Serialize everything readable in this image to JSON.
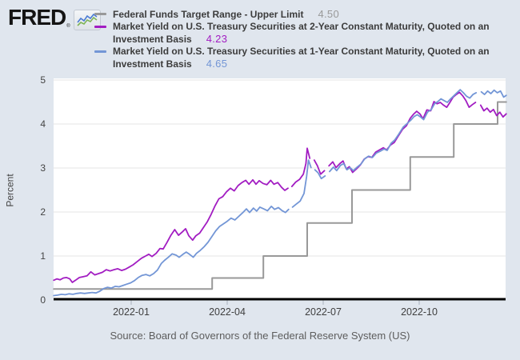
{
  "logo": {
    "text": "FRED",
    "registered": "®"
  },
  "legend": {
    "items": [
      {
        "label": "Federal Funds Target Range - Upper Limit",
        "label_lines": [
          "Federal Funds Target Range - Upper Limit"
        ],
        "value": "4.50",
        "color": "#999999"
      },
      {
        "label": "Market Yield on U.S. Treasury Securities at 2-Year Constant Maturity, Quoted on an Investment Basis",
        "label_lines": [
          "Market Yield on U.S. Treasury Securities at 2-Year Constant Maturity, Quoted on an",
          "Investment Basis"
        ],
        "value": "4.23",
        "color": "#a21dc2"
      },
      {
        "label": "Market Yield on U.S. Treasury Securities at 1-Year Constant Maturity, Quoted on an Investment Basis",
        "label_lines": [
          "Market Yield on U.S. Treasury Securities at 1-Year Constant Maturity, Quoted on an",
          "Investment Basis"
        ],
        "value": "4.65",
        "color": "#7396d6"
      }
    ]
  },
  "source": "Source: Board of Governors of the Federal Reserve System (US)",
  "chart_data": {
    "type": "line",
    "title": "",
    "xlabel": "",
    "ylabel": "Percent",
    "ylim": [
      0,
      5
    ],
    "yticks": [
      0,
      1,
      2,
      3,
      4,
      5
    ],
    "x_unit": "months since 2022-01-01",
    "xlim": [
      -2.42,
      11.72
    ],
    "xticks": [
      {
        "m": 0,
        "label": "2022-01"
      },
      {
        "m": 3,
        "label": "2022-04"
      },
      {
        "m": 6,
        "label": "2022-07"
      },
      {
        "m": 9,
        "label": "2022-10"
      }
    ],
    "grid": true,
    "legend_position": "top",
    "plot_bg": "#ffffff",
    "page_bg": "#e0e6ee",
    "grid_color": "#e6e6e6",
    "axis_color": "#000000",
    "tick_label_color": "#444444",
    "series": [
      {
        "name": "Federal Funds Target Range - Upper Limit",
        "key": "ffr-upper",
        "color": "#999999",
        "width": 2,
        "latest": 4.5,
        "step": true,
        "points": [
          [
            -2.42,
            0.25
          ],
          [
            2.53,
            0.25
          ],
          [
            2.53,
            0.5
          ],
          [
            4.13,
            0.5
          ],
          [
            4.13,
            1.0
          ],
          [
            5.5,
            1.0
          ],
          [
            5.5,
            1.75
          ],
          [
            6.9,
            1.75
          ],
          [
            6.9,
            2.5
          ],
          [
            8.72,
            2.5
          ],
          [
            8.72,
            3.25
          ],
          [
            10.08,
            3.25
          ],
          [
            10.08,
            4.0
          ],
          [
            11.45,
            4.0
          ],
          [
            11.45,
            4.5
          ],
          [
            11.72,
            4.5
          ]
        ]
      },
      {
        "name": "Market Yield on U.S. Treasury Securities at 2-Year Constant Maturity, Quoted on an Investment Basis",
        "key": "2yr",
        "color": "#a21dc2",
        "width": 1.8,
        "latest": 4.23,
        "step": false,
        "points": [
          [
            -2.42,
            0.45
          ],
          [
            -2.32,
            0.48
          ],
          [
            -2.22,
            0.46
          ],
          [
            -2.12,
            0.5
          ],
          [
            -2.02,
            0.51
          ],
          [
            -1.92,
            0.48
          ],
          [
            -1.84,
            0.4
          ],
          [
            -1.74,
            0.45
          ],
          [
            -1.62,
            0.51
          ],
          [
            -1.5,
            0.53
          ],
          [
            -1.38,
            0.55
          ],
          [
            -1.26,
            0.64
          ],
          [
            -1.14,
            0.57
          ],
          [
            -1.02,
            0.6
          ],
          [
            -0.9,
            0.63
          ],
          [
            -0.78,
            0.69
          ],
          [
            -0.66,
            0.66
          ],
          [
            -0.54,
            0.69
          ],
          [
            -0.42,
            0.71
          ],
          [
            -0.3,
            0.67
          ],
          [
            -0.18,
            0.7
          ],
          [
            -0.06,
            0.75
          ],
          [
            0.06,
            0.8
          ],
          [
            0.2,
            0.88
          ],
          [
            0.32,
            0.95
          ],
          [
            0.45,
            1.0
          ],
          [
            0.55,
            1.04
          ],
          [
            0.65,
            0.99
          ],
          [
            0.78,
            1.06
          ],
          [
            0.9,
            1.17
          ],
          [
            1.0,
            1.16
          ],
          [
            1.12,
            1.31
          ],
          [
            1.24,
            1.47
          ],
          [
            1.36,
            1.6
          ],
          [
            1.48,
            1.47
          ],
          [
            1.6,
            1.55
          ],
          [
            1.7,
            1.62
          ],
          [
            1.8,
            1.46
          ],
          [
            1.92,
            1.36
          ],
          [
            2.02,
            1.46
          ],
          [
            2.14,
            1.52
          ],
          [
            2.26,
            1.65
          ],
          [
            2.38,
            1.78
          ],
          [
            2.5,
            1.95
          ],
          [
            2.62,
            2.14
          ],
          [
            2.74,
            2.3
          ],
          [
            2.86,
            2.35
          ],
          [
            2.98,
            2.46
          ],
          [
            3.1,
            2.54
          ],
          [
            3.22,
            2.48
          ],
          [
            3.34,
            2.6
          ],
          [
            3.46,
            2.67
          ],
          [
            3.58,
            2.72
          ],
          [
            3.68,
            2.63
          ],
          [
            3.8,
            2.73
          ],
          [
            3.9,
            2.63
          ],
          [
            4.0,
            2.71
          ],
          [
            4.12,
            2.65
          ],
          [
            4.24,
            2.62
          ],
          [
            4.36,
            2.72
          ],
          [
            4.46,
            2.63
          ],
          [
            4.58,
            2.67
          ],
          [
            4.7,
            2.56
          ],
          [
            4.8,
            2.49
          ],
          [
            4.9,
            2.54
          ],
          null,
          [
            5.02,
            2.58
          ],
          [
            5.14,
            2.68
          ],
          [
            5.26,
            2.74
          ],
          [
            5.38,
            2.86
          ],
          [
            5.46,
            3.1
          ],
          [
            5.5,
            3.45
          ],
          [
            5.58,
            3.22
          ],
          null,
          [
            5.72,
            3.18
          ],
          [
            5.82,
            3.05
          ],
          [
            5.92,
            2.86
          ],
          [
            6.04,
            2.94
          ],
          null,
          [
            6.18,
            3.05
          ],
          [
            6.3,
            3.14
          ],
          [
            6.4,
            3.01
          ],
          [
            6.52,
            3.1
          ],
          [
            6.62,
            3.16
          ],
          [
            6.72,
            2.98
          ],
          [
            6.82,
            3.03
          ],
          [
            6.92,
            2.9
          ],
          [
            7.04,
            2.98
          ],
          [
            7.16,
            3.07
          ],
          [
            7.28,
            3.2
          ],
          [
            7.4,
            3.26
          ],
          [
            7.52,
            3.24
          ],
          [
            7.64,
            3.36
          ],
          [
            7.76,
            3.41
          ],
          [
            7.88,
            3.46
          ],
          [
            7.98,
            3.41
          ],
          [
            8.1,
            3.52
          ],
          [
            8.22,
            3.58
          ],
          [
            8.34,
            3.72
          ],
          [
            8.48,
            3.88
          ],
          [
            8.6,
            3.96
          ],
          [
            8.72,
            4.13
          ],
          [
            8.82,
            4.22
          ],
          [
            8.92,
            4.29
          ],
          [
            9.02,
            4.23
          ],
          [
            9.12,
            4.12
          ],
          [
            9.24,
            4.32
          ],
          [
            9.36,
            4.3
          ],
          [
            9.46,
            4.51
          ],
          [
            9.56,
            4.46
          ],
          [
            9.66,
            4.49
          ],
          [
            9.76,
            4.43
          ],
          [
            9.86,
            4.38
          ],
          [
            9.96,
            4.49
          ],
          [
            10.06,
            4.61
          ],
          [
            10.16,
            4.67
          ],
          [
            10.26,
            4.72
          ],
          [
            10.36,
            4.64
          ],
          [
            10.46,
            4.53
          ],
          [
            10.56,
            4.38
          ],
          [
            10.66,
            4.44
          ],
          [
            10.76,
            4.49
          ],
          null,
          [
            10.92,
            4.43
          ],
          [
            11.02,
            4.3
          ],
          [
            11.12,
            4.36
          ],
          [
            11.22,
            4.27
          ],
          [
            11.32,
            4.33
          ],
          [
            11.42,
            4.19
          ],
          [
            11.52,
            4.27
          ],
          [
            11.62,
            4.16
          ],
          [
            11.72,
            4.23
          ]
        ]
      },
      {
        "name": "Market Yield on U.S. Treasury Securities at 1-Year Constant Maturity, Quoted on an Investment Basis",
        "key": "1yr",
        "color": "#7396d6",
        "width": 1.8,
        "latest": 4.65,
        "step": false,
        "points": [
          [
            -2.42,
            0.1
          ],
          [
            -2.3,
            0.11
          ],
          [
            -2.18,
            0.13
          ],
          [
            -2.06,
            0.12
          ],
          [
            -1.94,
            0.14
          ],
          [
            -1.82,
            0.13
          ],
          [
            -1.7,
            0.15
          ],
          [
            -1.58,
            0.16
          ],
          [
            -1.46,
            0.15
          ],
          [
            -1.34,
            0.16
          ],
          [
            -1.22,
            0.17
          ],
          [
            -1.1,
            0.16
          ],
          [
            -0.98,
            0.2
          ],
          [
            -0.86,
            0.26
          ],
          [
            -0.74,
            0.29
          ],
          [
            -0.62,
            0.27
          ],
          [
            -0.5,
            0.31
          ],
          [
            -0.38,
            0.3
          ],
          [
            -0.26,
            0.33
          ],
          [
            -0.14,
            0.36
          ],
          [
            -0.02,
            0.39
          ],
          [
            0.1,
            0.44
          ],
          [
            0.22,
            0.51
          ],
          [
            0.34,
            0.56
          ],
          [
            0.46,
            0.58
          ],
          [
            0.58,
            0.55
          ],
          [
            0.7,
            0.6
          ],
          [
            0.82,
            0.68
          ],
          [
            0.94,
            0.83
          ],
          [
            1.04,
            0.9
          ],
          [
            1.16,
            0.97
          ],
          [
            1.28,
            1.05
          ],
          [
            1.4,
            1.02
          ],
          [
            1.5,
            0.97
          ],
          [
            1.62,
            1.04
          ],
          [
            1.72,
            1.09
          ],
          [
            1.82,
            1.04
          ],
          [
            1.94,
            0.97
          ],
          [
            2.04,
            1.06
          ],
          [
            2.16,
            1.13
          ],
          [
            2.28,
            1.21
          ],
          [
            2.4,
            1.31
          ],
          [
            2.52,
            1.44
          ],
          [
            2.64,
            1.57
          ],
          [
            2.76,
            1.67
          ],
          [
            2.88,
            1.73
          ],
          [
            3.0,
            1.79
          ],
          [
            3.12,
            1.86
          ],
          [
            3.24,
            1.82
          ],
          [
            3.36,
            1.9
          ],
          [
            3.48,
            1.98
          ],
          [
            3.6,
            2.07
          ],
          [
            3.7,
            1.99
          ],
          [
            3.82,
            2.09
          ],
          [
            3.92,
            2.02
          ],
          [
            4.02,
            2.11
          ],
          [
            4.14,
            2.07
          ],
          [
            4.26,
            2.03
          ],
          [
            4.38,
            2.13
          ],
          [
            4.48,
            2.06
          ],
          [
            4.6,
            2.1
          ],
          [
            4.72,
            2.03
          ],
          [
            4.82,
            1.99
          ],
          [
            4.92,
            2.06
          ],
          null,
          [
            5.04,
            2.11
          ],
          [
            5.16,
            2.18
          ],
          [
            5.28,
            2.25
          ],
          [
            5.4,
            2.42
          ],
          [
            5.48,
            2.8
          ],
          [
            5.54,
            3.18
          ],
          [
            5.62,
            3.01
          ],
          null,
          [
            5.74,
            2.96
          ],
          [
            5.84,
            2.89
          ],
          [
            5.94,
            2.76
          ],
          [
            6.06,
            2.82
          ],
          null,
          [
            6.2,
            2.92
          ],
          [
            6.32,
            3.02
          ],
          [
            6.42,
            2.94
          ],
          [
            6.54,
            3.06
          ],
          [
            6.64,
            3.1
          ],
          [
            6.74,
            2.96
          ],
          [
            6.84,
            3.01
          ],
          [
            6.94,
            2.94
          ],
          [
            7.06,
            3.02
          ],
          [
            7.18,
            3.09
          ],
          [
            7.3,
            3.21
          ],
          [
            7.42,
            3.27
          ],
          [
            7.54,
            3.24
          ],
          [
            7.66,
            3.34
          ],
          [
            7.78,
            3.38
          ],
          [
            7.9,
            3.43
          ],
          [
            8.0,
            3.4
          ],
          [
            8.12,
            3.56
          ],
          [
            8.24,
            3.64
          ],
          [
            8.36,
            3.77
          ],
          [
            8.5,
            3.93
          ],
          [
            8.62,
            4.01
          ],
          [
            8.74,
            4.09
          ],
          [
            8.84,
            4.17
          ],
          [
            8.94,
            4.21
          ],
          [
            9.04,
            4.16
          ],
          [
            9.14,
            4.1
          ],
          [
            9.26,
            4.27
          ],
          [
            9.38,
            4.33
          ],
          [
            9.48,
            4.46
          ],
          [
            9.58,
            4.51
          ],
          [
            9.68,
            4.57
          ],
          [
            9.78,
            4.53
          ],
          [
            9.88,
            4.49
          ],
          [
            9.98,
            4.57
          ],
          [
            10.08,
            4.64
          ],
          [
            10.18,
            4.71
          ],
          [
            10.28,
            4.78
          ],
          [
            10.38,
            4.71
          ],
          [
            10.48,
            4.63
          ],
          [
            10.58,
            4.59
          ],
          [
            10.68,
            4.67
          ],
          [
            10.78,
            4.71
          ],
          null,
          [
            10.94,
            4.73
          ],
          [
            11.04,
            4.67
          ],
          [
            11.14,
            4.75
          ],
          [
            11.24,
            4.69
          ],
          [
            11.34,
            4.77
          ],
          [
            11.44,
            4.71
          ],
          [
            11.54,
            4.75
          ],
          [
            11.64,
            4.61
          ],
          [
            11.72,
            4.65
          ]
        ]
      }
    ]
  }
}
